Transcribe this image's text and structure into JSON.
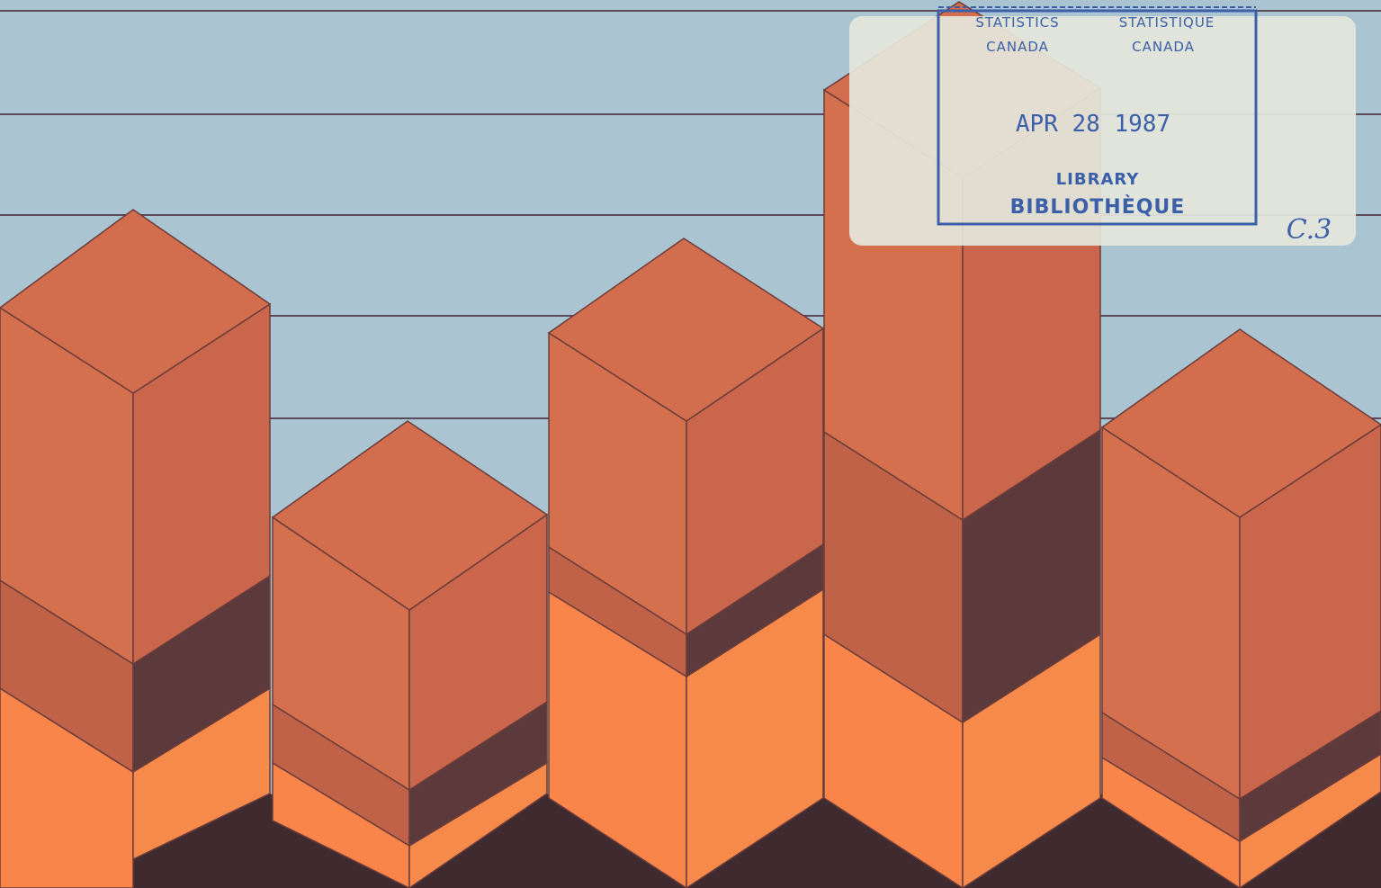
{
  "palette": {
    "sky": "#aac5d1",
    "gridline": "#5b4a5a",
    "block_left": "#d5704f",
    "block_right": "#c9664b",
    "block_top": "#d26d4e",
    "band_mid_left": "#bf6248",
    "band_mid_right": "#5c3a3c",
    "band_low_left": "#f9854a",
    "band_low_right": "#f68a4b",
    "band_base": "#3f2a2f",
    "stamp_ink": "#3b5fa8",
    "stamp_paper": "#e4e6dc",
    "handwriting": "#3b5fa8"
  },
  "stamp": {
    "col_left_top": "STATISTICS",
    "col_right_top": "STATISTIQUE",
    "col_left_bottom": "CANADA",
    "col_right_bottom": "CANADA",
    "date": "APR 28 1987",
    "library": "LIBRARY",
    "bibliotheque": "BIBLIOTHÈQUE"
  },
  "handwritten_note": "C.3"
}
